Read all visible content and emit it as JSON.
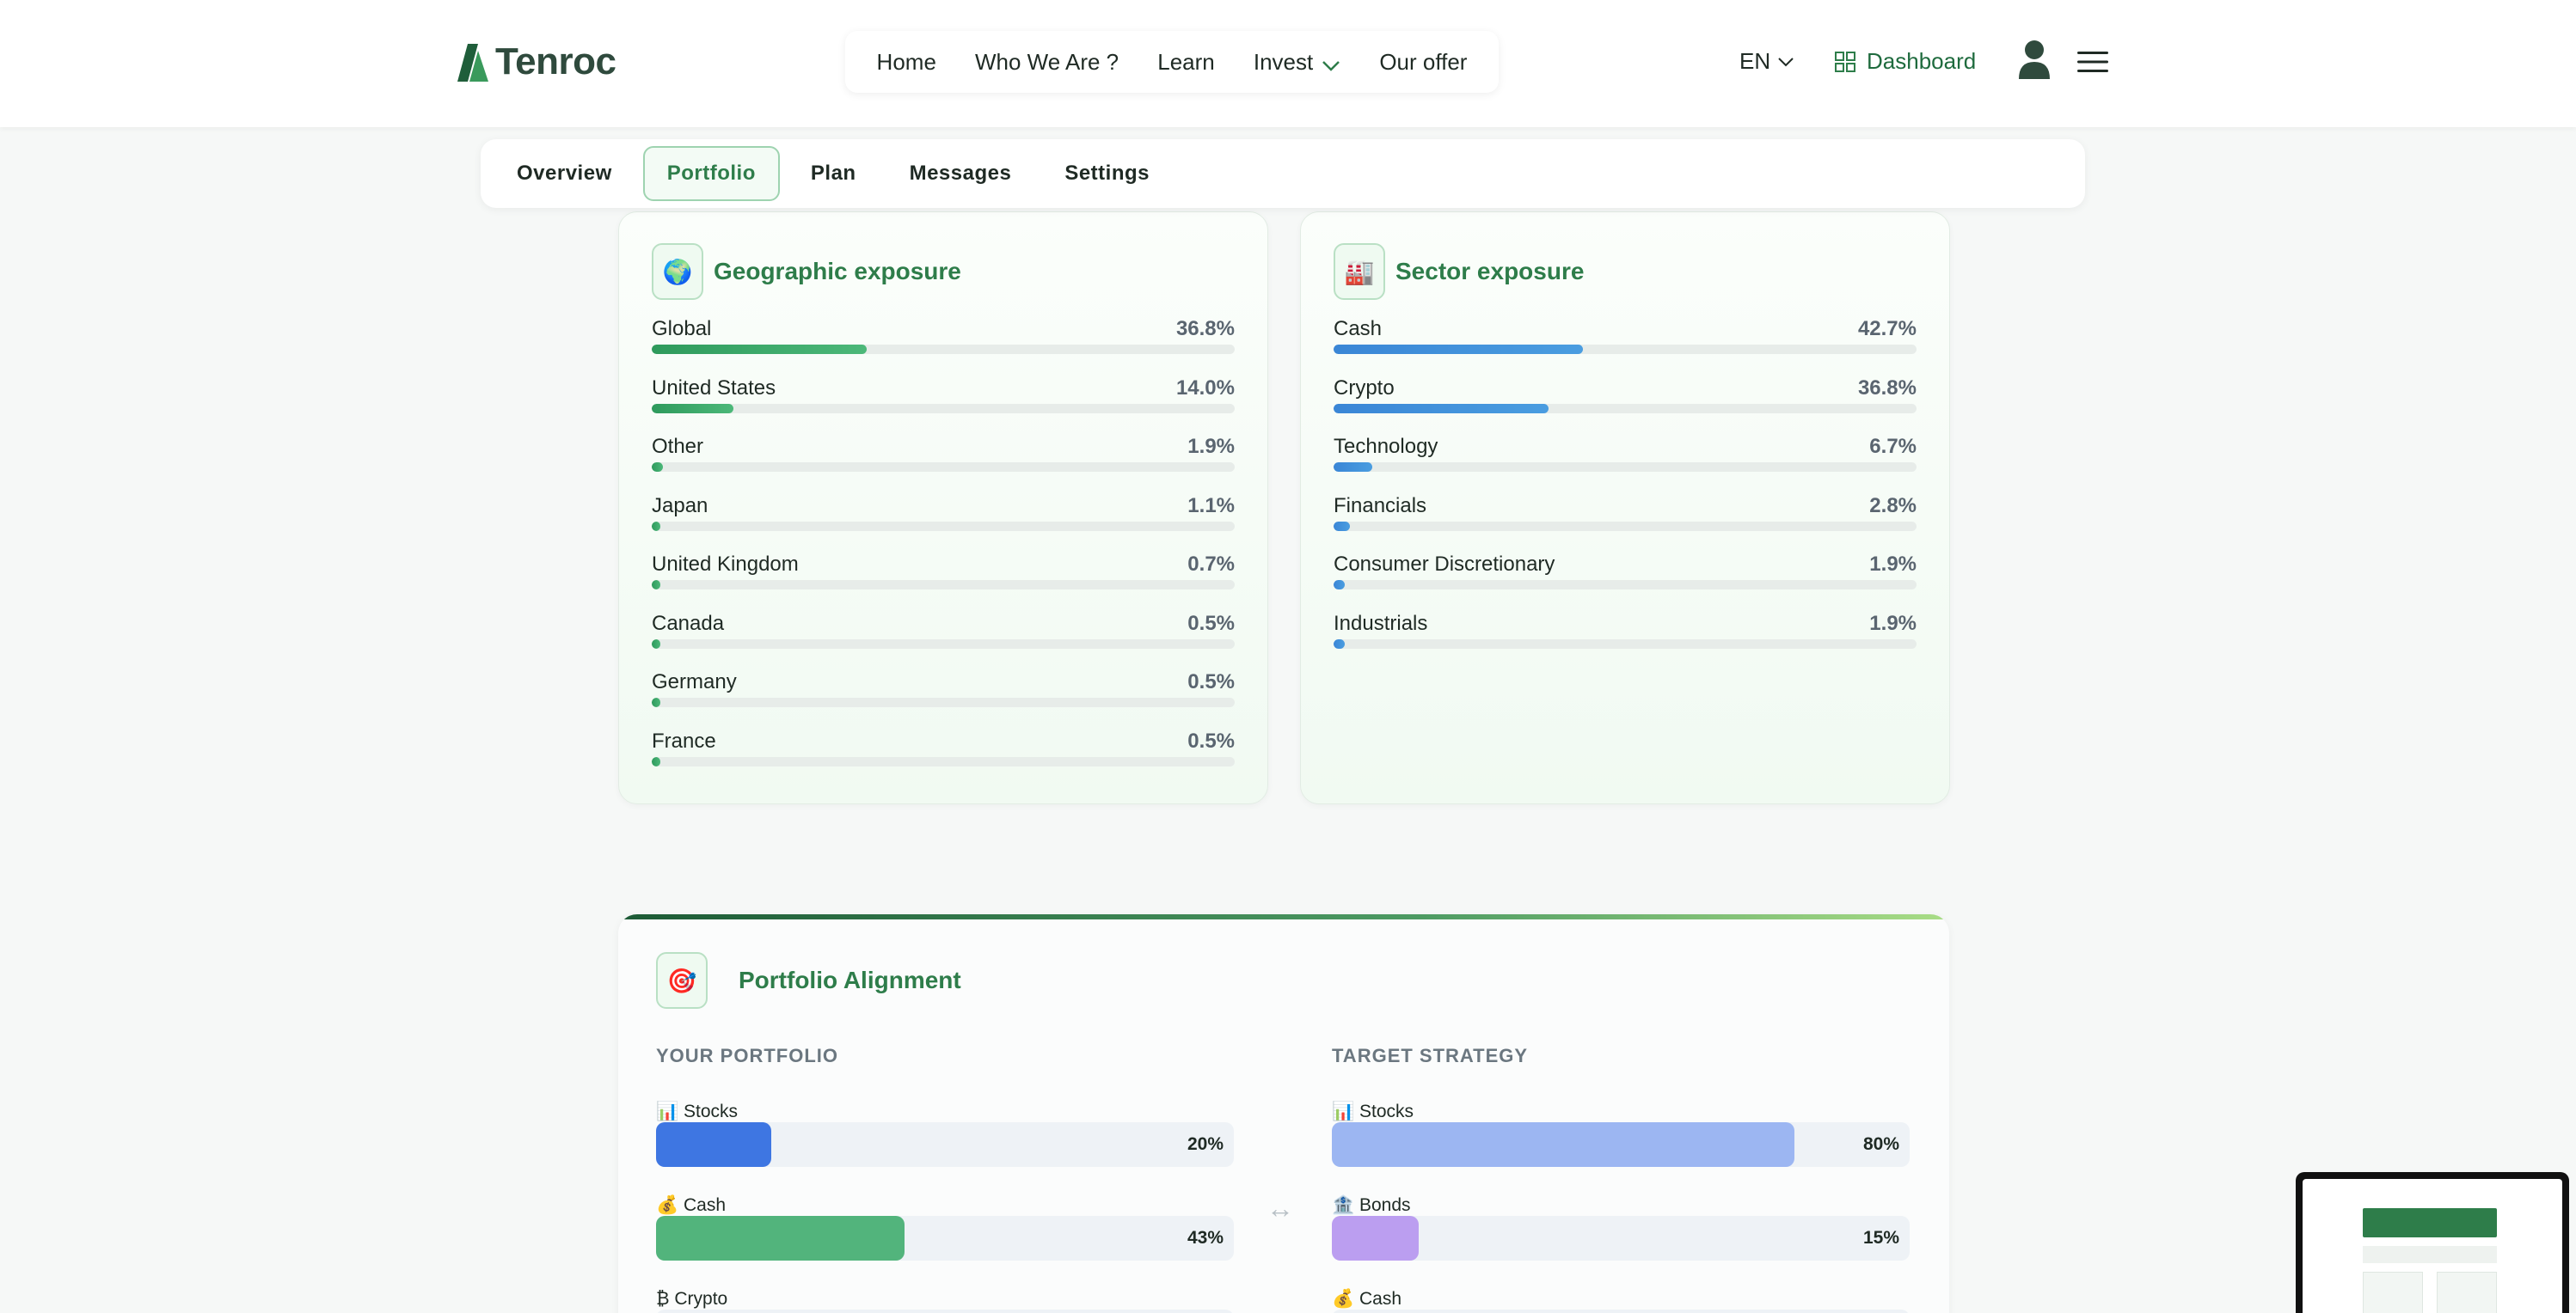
{
  "brand": {
    "name": "Tenroc"
  },
  "nav": {
    "items": [
      {
        "label": "Home"
      },
      {
        "label": "Who We Are ?"
      },
      {
        "label": "Learn"
      },
      {
        "label": "Invest"
      },
      {
        "label": "Our offer"
      }
    ],
    "language": "EN",
    "dashboard_label": "Dashboard"
  },
  "tabs": [
    {
      "label": "Overview"
    },
    {
      "label": "Portfolio",
      "active": true
    },
    {
      "label": "Plan"
    },
    {
      "label": "Messages"
    },
    {
      "label": "Settings"
    }
  ],
  "geographic": {
    "title": "Geographic exposure",
    "icon": "globe-icon",
    "rows": [
      {
        "label": "Global",
        "value": "36.8%",
        "pct": 36.8
      },
      {
        "label": "United States",
        "value": "14.0%",
        "pct": 14.0
      },
      {
        "label": "Other",
        "value": "1.9%",
        "pct": 1.9
      },
      {
        "label": "Japan",
        "value": "1.1%",
        "pct": 1.1
      },
      {
        "label": "United Kingdom",
        "value": "0.7%",
        "pct": 0.7
      },
      {
        "label": "Canada",
        "value": "0.5%",
        "pct": 0.5
      },
      {
        "label": "Germany",
        "value": "0.5%",
        "pct": 0.5
      },
      {
        "label": "France",
        "value": "0.5%",
        "pct": 0.5
      }
    ]
  },
  "sector": {
    "title": "Sector exposure",
    "icon": "factory-icon",
    "rows": [
      {
        "label": "Cash",
        "value": "42.7%",
        "pct": 42.7
      },
      {
        "label": "Crypto",
        "value": "36.8%",
        "pct": 36.8
      },
      {
        "label": "Technology",
        "value": "6.7%",
        "pct": 6.7
      },
      {
        "label": "Financials",
        "value": "2.8%",
        "pct": 2.8
      },
      {
        "label": "Consumer Discretionary",
        "value": "1.9%",
        "pct": 1.9
      },
      {
        "label": "Industrials",
        "value": "1.9%",
        "pct": 1.9
      }
    ]
  },
  "alignment": {
    "title": "Portfolio Alignment",
    "icon": "target-icon",
    "your": {
      "heading": "YOUR PORTFOLIO",
      "rows": [
        {
          "label": "📊 Stocks",
          "value": "20%",
          "pct": 20,
          "color": "#3e76e2"
        },
        {
          "label": "💰 Cash",
          "value": "43%",
          "pct": 43,
          "color": "#52b47c"
        },
        {
          "label": "₿ Crypto",
          "value": "",
          "pct": 0,
          "color": "#f0a64a"
        }
      ]
    },
    "target": {
      "heading": "TARGET STRATEGY",
      "rows": [
        {
          "label": "📊 Stocks",
          "value": "80%",
          "pct": 80,
          "color": "#9cb6f2"
        },
        {
          "label": "🏦 Bonds",
          "value": "15%",
          "pct": 15,
          "color": "#bb9ef0"
        },
        {
          "label": "💰 Cash",
          "value": "",
          "pct": 0,
          "color": "#8fd4a8"
        }
      ]
    },
    "arrow": "↔"
  }
}
